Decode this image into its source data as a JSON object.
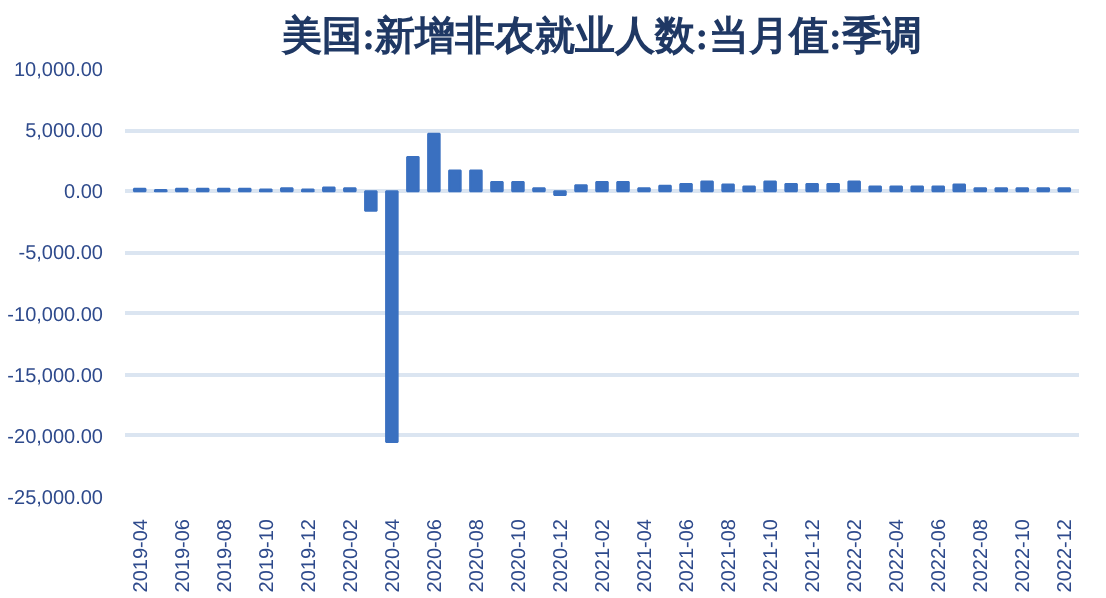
{
  "chart_data": {
    "type": "bar",
    "title": "美国:新增非农就业人数:当月值:季调",
    "categories": [
      "2019-04",
      null,
      "2019-06",
      null,
      "2019-08",
      null,
      "2019-10",
      null,
      "2019-12",
      null,
      "2020-02",
      null,
      "2020-04",
      null,
      "2020-06",
      null,
      "2020-08",
      null,
      "2020-10",
      null,
      "2020-12",
      null,
      "2021-02",
      null,
      "2021-04",
      null,
      "2021-06",
      null,
      "2021-08",
      null,
      "2021-10",
      null,
      "2021-12",
      null,
      "2022-02",
      null,
      "2022-04",
      null,
      "2022-06",
      null,
      "2022-08",
      null,
      "2022-10",
      null,
      "2022-12"
    ],
    "values": [
      200,
      100,
      200,
      200,
      200,
      200,
      150,
      250,
      150,
      300,
      250,
      -1600,
      -20500,
      2800,
      4700,
      1700,
      1700,
      750,
      750,
      250,
      -300,
      500,
      750,
      750,
      250,
      450,
      600,
      800,
      550,
      400,
      800,
      600,
      600,
      600,
      800,
      400,
      400,
      400,
      400,
      550,
      250,
      250,
      250,
      250,
      250
    ],
    "color": "#3a70c0",
    "ylim": [
      -25000,
      10000
    ],
    "yticks": [
      {
        "value": -25000,
        "label": "-25,000.00"
      },
      {
        "value": -20000,
        "label": "-20,000.00"
      },
      {
        "value": -15000,
        "label": "-15,000.00"
      },
      {
        "value": -10000,
        "label": "-10,000.00"
      },
      {
        "value": -5000,
        "label": "-5,000.00"
      },
      {
        "value": 0,
        "label": "0.00"
      },
      {
        "value": 5000,
        "label": "5,000.00"
      },
      {
        "value": 10000,
        "label": "10,000.00"
      }
    ],
    "grid": "y"
  }
}
